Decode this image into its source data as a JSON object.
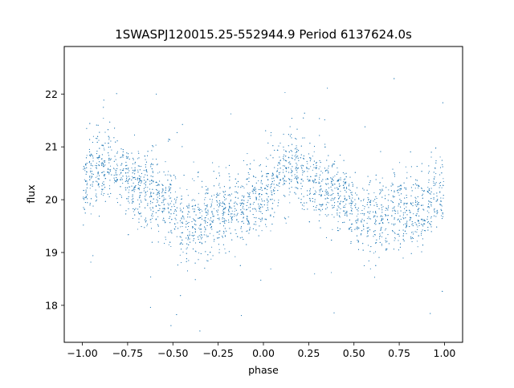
{
  "chart_data": {
    "type": "scatter",
    "title": "1SWASPJ120015.25-552944.9 Period 6137624.0s",
    "xlabel": "phase",
    "ylabel": "flux",
    "xlim": [
      -1.1,
      1.1
    ],
    "ylim": [
      17.3,
      22.9
    ],
    "x_ticks": [
      -1.0,
      -0.75,
      -0.5,
      -0.25,
      0.0,
      0.25,
      0.5,
      0.75,
      1.0
    ],
    "x_tick_labels": [
      "−1.00",
      "−0.75",
      "−0.50",
      "−0.25",
      "0.00",
      "0.25",
      "0.50",
      "0.75",
      "1.00"
    ],
    "y_ticks": [
      18,
      19,
      20,
      21,
      22
    ],
    "y_tick_labels": [
      "18",
      "19",
      "20",
      "21",
      "22"
    ],
    "grid": false,
    "legend": "none",
    "series": [
      {
        "marker_color": "#1f77b4",
        "phase_range": [
          -1.0,
          1.0
        ],
        "mean_flux_curve": {
          "phase": [
            -1.0,
            -0.9,
            -0.85,
            -0.75,
            -0.6,
            -0.5,
            -0.45,
            -0.3,
            -0.2,
            -0.1,
            0.0,
            0.1,
            0.15,
            0.25,
            0.4,
            0.5,
            0.55,
            0.7,
            0.8,
            0.9,
            1.0
          ],
          "flux": [
            20.3,
            20.6,
            20.7,
            20.4,
            20.1,
            19.9,
            19.5,
            19.6,
            19.8,
            19.9,
            20.1,
            20.5,
            20.6,
            20.4,
            20.1,
            19.9,
            19.5,
            19.7,
            19.8,
            19.9,
            20.2
          ]
        },
        "typical_scatter": 0.35,
        "min_flux": 17.5,
        "max_flux": 22.6
      }
    ]
  }
}
